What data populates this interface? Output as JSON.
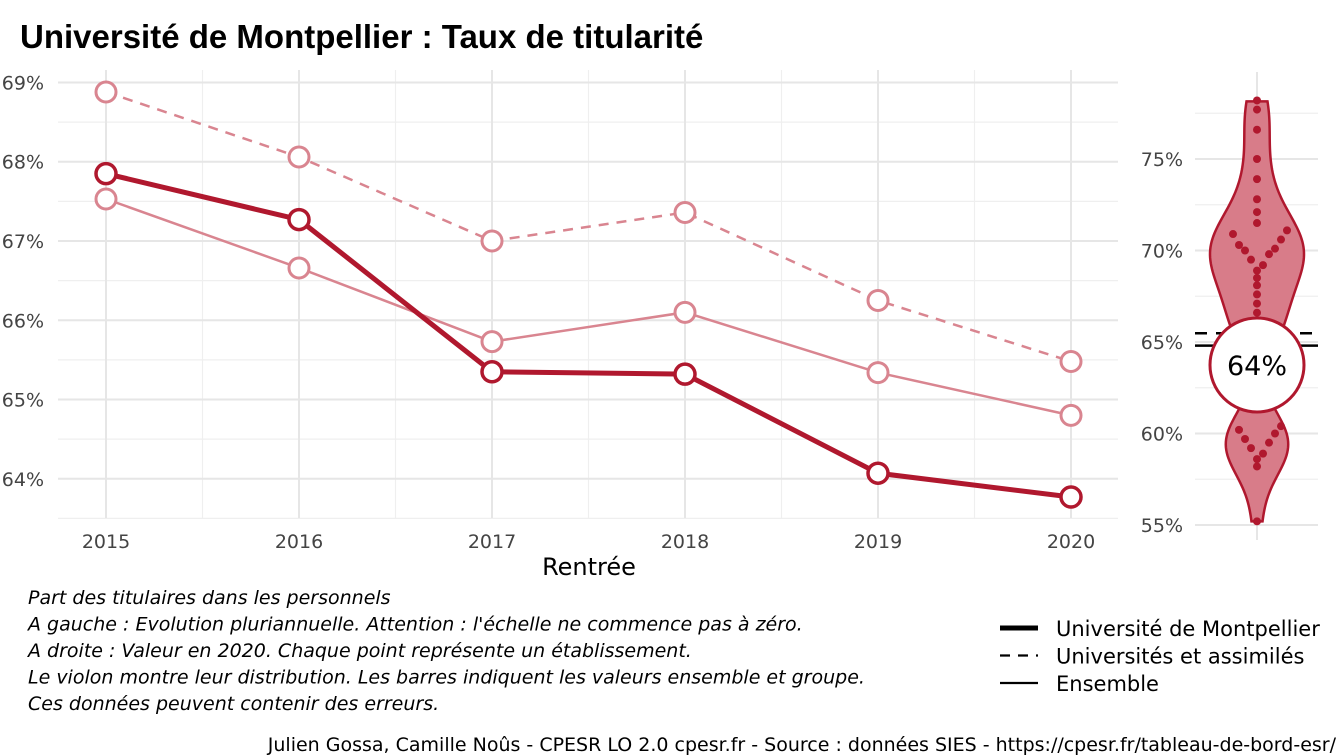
{
  "title": "Université de Montpellier  :  Taux de titularité",
  "colors": {
    "main": "#b0182e",
    "light": "#d98590",
    "violin_fill": "#d87c89",
    "violin_stroke": "#b0182e",
    "grid": "#e6e6e6"
  },
  "chart_data": [
    {
      "type": "line",
      "xlabel": "Rentrée",
      "ylabel": "",
      "categories": [
        "2015",
        "2016",
        "2017",
        "2018",
        "2019",
        "2020"
      ],
      "ylim": [
        63.5,
        69.1
      ],
      "yticks": [
        64,
        65,
        66,
        67,
        68,
        69
      ],
      "ytick_labels": [
        "64%",
        "65%",
        "66%",
        "67%",
        "68%",
        "69%"
      ],
      "grid": true,
      "series": [
        {
          "name": "Université de Montpellier",
          "style": "solid-thick",
          "values": [
            67.85,
            67.27,
            65.35,
            65.32,
            64.07,
            63.77
          ]
        },
        {
          "name": "Universités et assimilés",
          "style": "dashed",
          "values": [
            68.88,
            68.06,
            67.0,
            67.36,
            66.25,
            65.48
          ]
        },
        {
          "name": "Ensemble",
          "style": "solid-thin",
          "values": [
            67.53,
            66.66,
            65.73,
            66.1,
            65.34,
            64.8
          ]
        }
      ]
    },
    {
      "type": "violin",
      "year": "2020",
      "ylim": [
        54.5,
        78.5
      ],
      "yticks": [
        55,
        60,
        65,
        70,
        75
      ],
      "ytick_labels": [
        "55%",
        "60%",
        "65%",
        "70%",
        "75%"
      ],
      "points": [
        55.2,
        58.2,
        58.6,
        58.9,
        59.2,
        59.5,
        59.7,
        60.0,
        60.2,
        60.4,
        64.7,
        65.2,
        65.6,
        66.1,
        66.6,
        67.1,
        67.6,
        68.1,
        68.5,
        68.9,
        69.2,
        69.5,
        69.8,
        70.0,
        70.1,
        70.3,
        70.6,
        70.9,
        71.1,
        71.5,
        72.1,
        72.8,
        73.9,
        75.0,
        76.6,
        77.7,
        78.2
      ],
      "value": 63.77,
      "value_label": "64%",
      "ensemble_value": 64.8,
      "group_value": 65.48
    }
  ],
  "caption_lines": [
    "Part des titulaires dans les personnels",
    "A gauche : Evolution pluriannuelle. Attention : l'échelle ne commence pas à zéro.",
    "A droite : Valeur en 2020. Chaque point représente un établissement.",
    "Le violon montre leur distribution. Les barres indiquent les valeurs ensemble et groupe.",
    "Ces données peuvent contenir des erreurs."
  ],
  "legend": [
    {
      "label": "Université de Montpellier",
      "style": "solid-thick"
    },
    {
      "label": "Universités et assimilés",
      "style": "dashed"
    },
    {
      "label": "Ensemble",
      "style": "solid-thin"
    }
  ],
  "credit": "Julien Gossa, Camille Noûs - CPESR LO 2.0 cpesr.fr - Source : données SIES - https://cpesr.fr/tableau-de-bord-esr/"
}
